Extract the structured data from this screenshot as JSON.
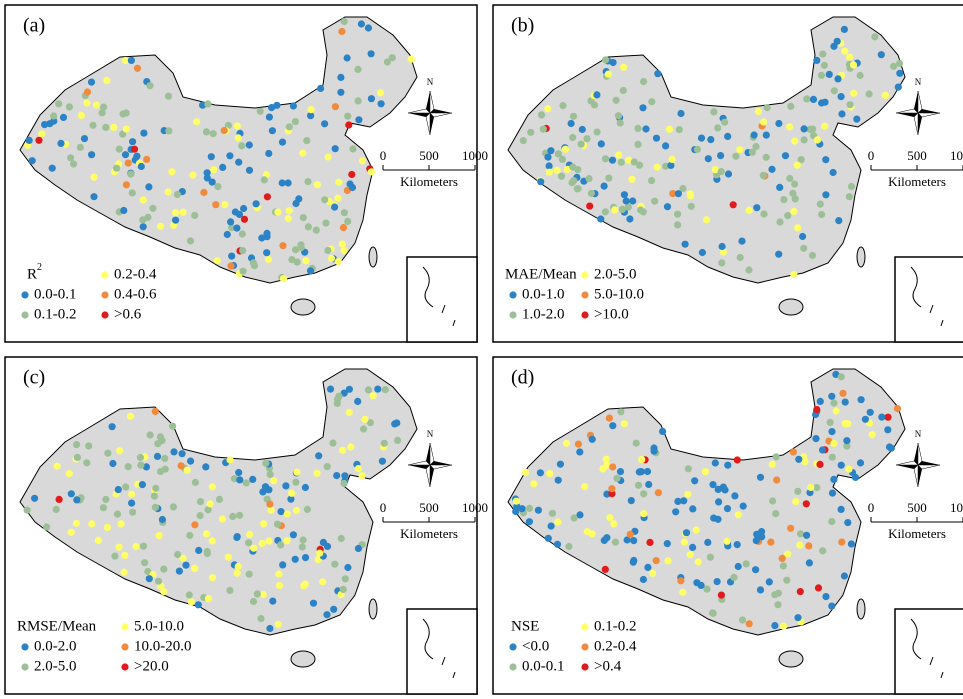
{
  "panels": [
    {
      "label": "(a)",
      "legend_title": "R",
      "legend_title_sup": "2",
      "legend": [
        {
          "label": "0.0-0.1",
          "color": "#2b83c6"
        },
        {
          "label": "0.1-0.2",
          "color": "#9dbf98"
        },
        {
          "label": "0.2-0.4",
          "color": "#ffff66"
        },
        {
          "label": "0.4-0.6",
          "color": "#f08a3c"
        },
        {
          "label": ">0.6",
          "color": "#e31a1c"
        }
      ]
    },
    {
      "label": "(b)",
      "legend_title": "MAE/Mean",
      "legend": [
        {
          "label": "0.0-1.0",
          "color": "#2b83c6"
        },
        {
          "label": "1.0-2.0",
          "color": "#9dbf98"
        },
        {
          "label": "2.0-5.0",
          "color": "#ffff66"
        },
        {
          "label": "5.0-10.0",
          "color": "#f08a3c"
        },
        {
          "label": ">10.0",
          "color": "#e31a1c"
        }
      ]
    },
    {
      "label": "(c)",
      "legend_title": "RMSE/Mean",
      "legend": [
        {
          "label": "0.0-2.0",
          "color": "#2b83c6"
        },
        {
          "label": "2.0-5.0",
          "color": "#9dbf98"
        },
        {
          "label": "5.0-10.0",
          "color": "#ffff66"
        },
        {
          "label": "10.0-20.0",
          "color": "#f08a3c"
        },
        {
          "label": ">20.0",
          "color": "#e31a1c"
        }
      ]
    },
    {
      "label": "(d)",
      "legend_title": "NSE",
      "legend": [
        {
          "label": "<0.0",
          "color": "#2b83c6"
        },
        {
          "label": "0.0-0.1",
          "color": "#9dbf98"
        },
        {
          "label": "0.1-0.2",
          "color": "#ffff66"
        },
        {
          "label": "0.2-0.4",
          "color": "#f08a3c"
        },
        {
          "label": ">0.4",
          "color": "#e31a1c"
        }
      ]
    }
  ],
  "scale_bar": {
    "ticks": [
      "0",
      "500",
      "1000"
    ],
    "unit": "Kilometers"
  },
  "compass": "N"
}
